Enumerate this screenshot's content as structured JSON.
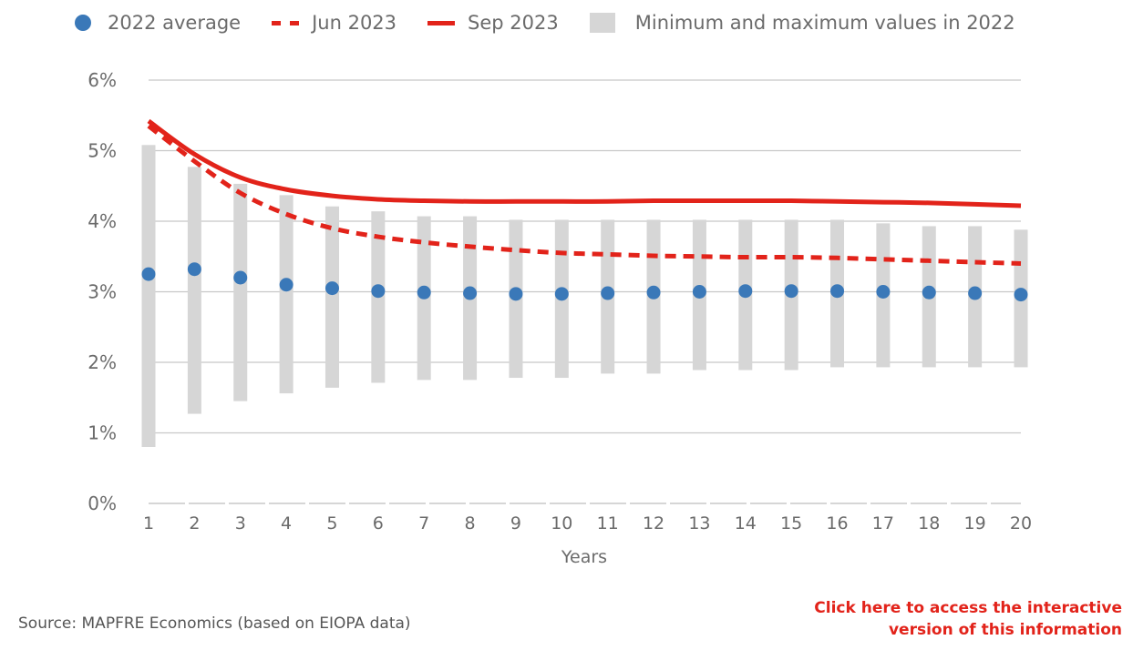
{
  "legend": {
    "avg_label": "2022 average",
    "jun_label": "Jun 2023",
    "sep_label": "Sep 2023",
    "range_label": "Minimum and maximum values in 2022"
  },
  "footer": {
    "source": "Source: MAPFRE Economics (based on EIOPA data)",
    "link_line1": "Click here to access the interactive",
    "link_line2": "version of this information"
  },
  "colors": {
    "average": "#3a78b8",
    "series_red": "#e2231a",
    "range_bar": "#d6d6d6",
    "grid": "#c8c8c8",
    "link": "#e2231a"
  },
  "chart_data": {
    "type": "line",
    "xlabel": "Years",
    "ylabel": "",
    "categories": [
      "1",
      "2",
      "3",
      "4",
      "5",
      "6",
      "7",
      "8",
      "9",
      "10",
      "11",
      "12",
      "13",
      "14",
      "15",
      "16",
      "17",
      "18",
      "19",
      "20"
    ],
    "ylim": [
      0,
      6
    ],
    "yticks": [
      "0%",
      "1%",
      "2%",
      "3%",
      "4%",
      "5%",
      "6%"
    ],
    "grid": true,
    "legend_position": "top",
    "series": [
      {
        "name": "2022 average",
        "style": "dots",
        "values": [
          3.25,
          3.32,
          3.2,
          3.1,
          3.05,
          3.01,
          2.99,
          2.98,
          2.97,
          2.97,
          2.98,
          2.99,
          3.0,
          3.01,
          3.01,
          3.01,
          3.0,
          2.99,
          2.98,
          2.96
        ]
      },
      {
        "name": "Jun 2023",
        "style": "dashed",
        "values": [
          5.35,
          4.85,
          4.4,
          4.1,
          3.9,
          3.78,
          3.7,
          3.64,
          3.59,
          3.55,
          3.53,
          3.51,
          3.5,
          3.49,
          3.49,
          3.48,
          3.46,
          3.44,
          3.42,
          3.4
        ]
      },
      {
        "name": "Sep 2023",
        "style": "solid",
        "values": [
          5.42,
          4.95,
          4.62,
          4.45,
          4.36,
          4.31,
          4.29,
          4.28,
          4.28,
          4.28,
          4.28,
          4.29,
          4.29,
          4.29,
          4.29,
          4.28,
          4.27,
          4.26,
          4.24,
          4.22
        ]
      },
      {
        "name": "Minimum and maximum values in 2022",
        "style": "range",
        "min": [
          0.8,
          1.27,
          1.45,
          1.56,
          1.64,
          1.71,
          1.75,
          1.75,
          1.78,
          1.78,
          1.84,
          1.84,
          1.89,
          1.89,
          1.89,
          1.93,
          1.93,
          1.93,
          1.93,
          1.93
        ],
        "max": [
          5.08,
          4.77,
          4.53,
          4.37,
          4.21,
          4.14,
          4.07,
          4.07,
          4.02,
          4.02,
          4.02,
          4.02,
          4.02,
          4.02,
          4.02,
          4.02,
          3.97,
          3.93,
          3.93,
          3.88
        ]
      }
    ]
  }
}
